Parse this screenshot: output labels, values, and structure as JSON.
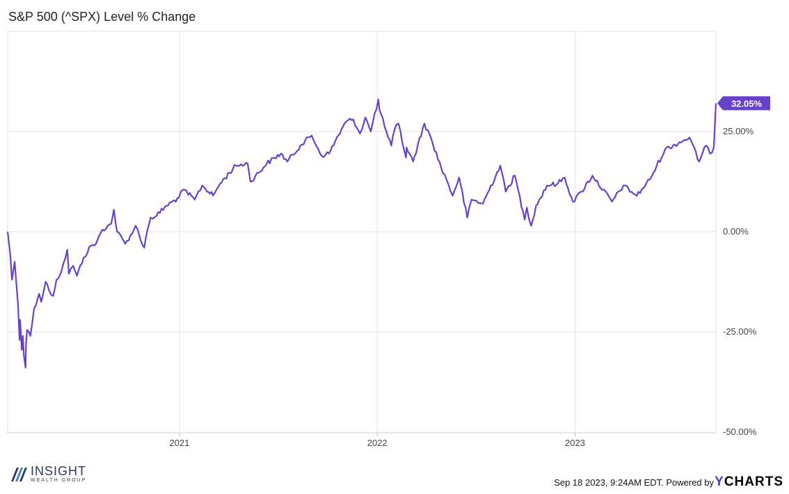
{
  "chart_data": {
    "type": "line",
    "title": "S&P 500 (^SPX) Level % Change",
    "xlabel": "",
    "ylabel": "",
    "x_tick_labels": [
      "2021",
      "2022",
      "2023"
    ],
    "y_tick_labels": [
      "25.00%",
      "0.00%",
      "-25.00%",
      "-50.00%"
    ],
    "y_ticks": [
      25,
      0,
      -25,
      -50
    ],
    "ylim": [
      -50,
      50
    ],
    "xlim": [
      "2020-02-19",
      "2023-09-18"
    ],
    "grid": true,
    "last_value_label": "32.05%",
    "series": [
      {
        "color": "#6741c9",
        "points": [
          [
            "2020-02-19",
            0.0
          ],
          [
            "2020-02-24",
            -6.0
          ],
          [
            "2020-02-27",
            -12.0
          ],
          [
            "2020-03-03",
            -7.5
          ],
          [
            "2020-03-09",
            -18.0
          ],
          [
            "2020-03-12",
            -27.0
          ],
          [
            "2020-03-13",
            -22.0
          ],
          [
            "2020-03-16",
            -29.5
          ],
          [
            "2020-03-18",
            -26.0
          ],
          [
            "2020-03-20",
            -31.0
          ],
          [
            "2020-03-23",
            -33.9
          ],
          [
            "2020-03-24",
            -27.5
          ],
          [
            "2020-03-26",
            -24.5
          ],
          [
            "2020-04-01",
            -26.0
          ],
          [
            "2020-04-08",
            -19.0
          ],
          [
            "2020-04-17",
            -15.5
          ],
          [
            "2020-04-21",
            -17.5
          ],
          [
            "2020-04-29",
            -12.5
          ],
          [
            "2020-05-05",
            -14.5
          ],
          [
            "2020-05-13",
            -16.0
          ],
          [
            "2020-05-19",
            -12.0
          ],
          [
            "2020-05-28",
            -10.0
          ],
          [
            "2020-06-08",
            -4.5
          ],
          [
            "2020-06-11",
            -10.5
          ],
          [
            "2020-06-19",
            -8.5
          ],
          [
            "2020-06-26",
            -11.0
          ],
          [
            "2020-07-08",
            -6.5
          ],
          [
            "2020-07-22",
            -3.5
          ],
          [
            "2020-07-31",
            -3.0
          ],
          [
            "2020-08-12",
            0.5
          ],
          [
            "2020-08-28",
            2.0
          ],
          [
            "2020-09-02",
            5.5
          ],
          [
            "2020-09-08",
            0.0
          ],
          [
            "2020-09-23",
            -3.0
          ],
          [
            "2020-10-09",
            0.5
          ],
          [
            "2020-10-12",
            1.5
          ],
          [
            "2020-10-28",
            -4.0
          ],
          [
            "2020-11-03",
            0.5
          ],
          [
            "2020-11-09",
            3.5
          ],
          [
            "2020-11-20",
            4.0
          ],
          [
            "2020-12-08",
            6.5
          ],
          [
            "2020-12-31",
            8.5
          ],
          [
            "2021-01-08",
            10.5
          ],
          [
            "2021-01-29",
            8.0
          ],
          [
            "2021-02-12",
            11.5
          ],
          [
            "2021-03-04",
            9.0
          ],
          [
            "2021-03-17",
            12.0
          ],
          [
            "2021-04-15",
            16.5
          ],
          [
            "2021-05-07",
            17.0
          ],
          [
            "2021-05-12",
            12.5
          ],
          [
            "2021-06-11",
            17.0
          ],
          [
            "2021-07-07",
            19.5
          ],
          [
            "2021-07-19",
            17.5
          ],
          [
            "2021-08-12",
            21.5
          ],
          [
            "2021-09-02",
            24.0
          ],
          [
            "2021-09-20",
            19.0
          ],
          [
            "2021-10-04",
            19.5
          ],
          [
            "2021-10-21",
            24.0
          ],
          [
            "2021-11-05",
            27.5
          ],
          [
            "2021-11-18",
            28.0
          ],
          [
            "2021-11-30",
            24.5
          ],
          [
            "2021-12-10",
            28.5
          ],
          [
            "2021-12-20",
            25.0
          ],
          [
            "2022-01-03",
            33.0
          ],
          [
            "2022-01-05",
            30.5
          ],
          [
            "2022-01-21",
            23.5
          ],
          [
            "2022-01-27",
            21.5
          ],
          [
            "2022-02-02",
            25.5
          ],
          [
            "2022-02-09",
            27.0
          ],
          [
            "2022-02-23",
            18.5
          ],
          [
            "2022-02-24",
            21.0
          ],
          [
            "2022-03-08",
            17.5
          ],
          [
            "2022-03-29",
            27.0
          ],
          [
            "2022-04-11",
            23.0
          ],
          [
            "2022-04-29",
            16.0
          ],
          [
            "2022-05-12",
            12.0
          ],
          [
            "2022-05-20",
            9.0
          ],
          [
            "2022-06-01",
            13.5
          ],
          [
            "2022-06-16",
            3.5
          ],
          [
            "2022-06-24",
            8.0
          ],
          [
            "2022-07-15",
            7.0
          ],
          [
            "2022-08-16",
            16.5
          ],
          [
            "2022-08-26",
            10.0
          ],
          [
            "2022-09-12",
            14.0
          ],
          [
            "2022-09-30",
            3.0
          ],
          [
            "2022-10-04",
            6.0
          ],
          [
            "2022-10-12",
            1.5
          ],
          [
            "2022-10-21",
            6.5
          ],
          [
            "2022-11-10",
            11.5
          ],
          [
            "2022-11-30",
            12.0
          ],
          [
            "2022-12-13",
            13.5
          ],
          [
            "2022-12-28",
            7.5
          ],
          [
            "2023-01-13",
            10.0
          ],
          [
            "2023-02-02",
            14.0
          ],
          [
            "2023-03-10",
            7.5
          ],
          [
            "2023-03-31",
            11.5
          ],
          [
            "2023-04-25",
            9.0
          ],
          [
            "2023-05-19",
            13.0
          ],
          [
            "2023-06-16",
            20.5
          ],
          [
            "2023-07-31",
            23.5
          ],
          [
            "2023-08-18",
            17.5
          ],
          [
            "2023-08-31",
            21.5
          ],
          [
            "2023-09-07",
            19.5
          ],
          [
            "2023-09-14",
            21.0
          ],
          [
            "2023-09-18",
            32.05
          ]
        ]
      }
    ]
  },
  "footer": {
    "timestamp_text": "Sep 18 2023, 9:24AM EDT. Powered by",
    "ycharts_y": "Y",
    "ycharts_rest": "CHARTS"
  },
  "logo": {
    "name": "INSIGHT",
    "subtitle": "WEALTH GROUP"
  }
}
